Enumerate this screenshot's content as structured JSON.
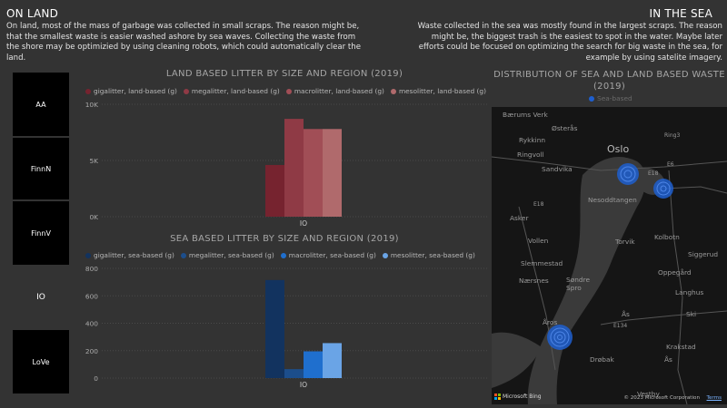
{
  "left": {
    "heading": "ON LAND",
    "text": "On land, most of the mass of garbage was collected in small scraps. The reason might be, that the smallest waste is easier washed ashore by sea waves. Collecting the waste from the shore may be optimizied by using cleaning robots, which could automatically clear the land."
  },
  "right": {
    "heading": "IN THE SEA",
    "text": "Waste collected in the sea was mostly found in the largest scraps. The reason might be, the biggest trash is the easiest to spot in the water. Maybe later efforts could be focused on optimizing the search for big waste in the sea, for example by using satelite imagery."
  },
  "slicer": {
    "items": [
      "AA",
      "FinnN",
      "FinnV",
      "IO",
      "LoVe"
    ],
    "selected": "IO"
  },
  "land_chart": {
    "title": "LAND BASED LITTER BY SIZE AND REGION (2019)",
    "legend": [
      "gigalitter, land-based (g)",
      "megalitter, land-based (g)",
      "macrolitter, land-based (g)",
      "mesolitter, land-based (g)"
    ]
  },
  "sea_chart": {
    "title": "SEA BASED LITTER BY SIZE AND REGION (2019)",
    "legend": [
      "gigalitter, sea-based (g)",
      "megalitter, sea-based (g)",
      "macrolitter, sea-based (g)",
      "mesolitter, sea-based (g)"
    ]
  },
  "map": {
    "title_line1": "DISTRIBUTION OF SEA AND LAND BASED WASTE",
    "title_line2": "(2019)",
    "legend": "Sea-based",
    "labels": [
      "Bærums Verk",
      "Østerås",
      "Oslo",
      "Rykkinn",
      "Ring3",
      "Ringvoll",
      "Sandvika",
      "E6",
      "E18",
      "Nesoddtangen",
      "E18",
      "Asker",
      "Torvik",
      "Kolbotn",
      "Vollen",
      "Siggerud",
      "Slemmestad",
      "Søndre Spro",
      "Oppegård",
      "Nærsnes",
      "Langhus",
      "Ski",
      "Ås",
      "E134",
      "Åros",
      "Krakstad",
      "Drøbak",
      "Ås",
      "Vestby"
    ],
    "attribution": "© 2023 Microsoft Corporation",
    "terms": "Terms",
    "bing": "Microsoft Bing"
  },
  "chart_data": [
    {
      "type": "bar",
      "title": "LAND BASED LITTER BY SIZE AND REGION (2019)",
      "categories": [
        "IO"
      ],
      "series": [
        {
          "name": "gigalitter, land-based (g)",
          "values": [
            4600
          ]
        },
        {
          "name": "megalitter, land-based (g)",
          "values": [
            8700
          ]
        },
        {
          "name": "macrolitter, land-based (g)",
          "values": [
            7800
          ]
        },
        {
          "name": "mesolitter, land-based (g)",
          "values": [
            7800
          ]
        }
      ],
      "colors": [
        "#76232f",
        "#8f3a45",
        "#a14e56",
        "#b06a6c"
      ],
      "ylim": [
        0,
        10000
      ],
      "yticks": [
        0,
        5000,
        10000
      ],
      "ytick_labels": [
        "0K",
        "5K",
        "10K"
      ],
      "grid": true,
      "legend": "top-left"
    },
    {
      "type": "bar",
      "title": "SEA BASED LITTER BY SIZE AND REGION (2019)",
      "categories": [
        "IO"
      ],
      "series": [
        {
          "name": "gigalitter, sea-based (g)",
          "values": [
            715
          ]
        },
        {
          "name": "megalitter, sea-based (g)",
          "values": [
            65
          ]
        },
        {
          "name": "macrolitter, sea-based (g)",
          "values": [
            195
          ]
        },
        {
          "name": "mesolitter, sea-based (g)",
          "values": [
            255
          ]
        }
      ],
      "colors": [
        "#12335f",
        "#1c4e8c",
        "#1f6fce",
        "#6aa4e6"
      ],
      "ylim": [
        0,
        800
      ],
      "yticks": [
        0,
        200,
        400,
        600,
        800
      ],
      "ytick_labels": [
        "0",
        "200",
        "400",
        "600",
        "800"
      ],
      "grid": true,
      "legend": "top-left"
    }
  ]
}
